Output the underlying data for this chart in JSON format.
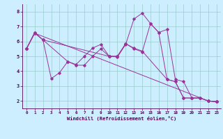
{
  "xlabel": "Windchill (Refroidissement éolien,°C)",
  "bg_color": "#cceeff",
  "line_color": "#993399",
  "grid_color": "#99cccc",
  "xlim": [
    -0.5,
    23.5
  ],
  "ylim": [
    1.5,
    8.5
  ],
  "yticks": [
    2,
    3,
    4,
    5,
    6,
    7,
    8
  ],
  "xticks": [
    0,
    1,
    2,
    3,
    4,
    5,
    6,
    7,
    8,
    9,
    10,
    11,
    12,
    13,
    14,
    15,
    16,
    17,
    18,
    19,
    20,
    21,
    22,
    23
  ],
  "series": [
    {
      "x": [
        0,
        1,
        2,
        10,
        11,
        12,
        13,
        14,
        15,
        16,
        17,
        18,
        19,
        20,
        21,
        22,
        23
      ],
      "y": [
        5.5,
        6.6,
        6.1,
        5.0,
        4.95,
        5.8,
        7.5,
        7.9,
        7.2,
        6.6,
        6.8,
        3.45,
        3.3,
        2.2,
        2.2,
        2.0,
        1.95
      ]
    },
    {
      "x": [
        0,
        1,
        2,
        5,
        6,
        7,
        8,
        9,
        10,
        11,
        12,
        13,
        14,
        17,
        18,
        19,
        20,
        21,
        22,
        23
      ],
      "y": [
        5.5,
        6.6,
        6.1,
        4.65,
        4.45,
        5.0,
        5.55,
        5.8,
        5.0,
        5.0,
        5.85,
        5.55,
        5.35,
        3.45,
        3.3,
        2.2,
        2.2,
        2.2,
        2.0,
        1.95
      ]
    },
    {
      "x": [
        0,
        1,
        2,
        3,
        4,
        5,
        6,
        7,
        8,
        9,
        10,
        11,
        12,
        13,
        14,
        15,
        16,
        17,
        18,
        19,
        20,
        21,
        22,
        23
      ],
      "y": [
        5.5,
        6.55,
        6.1,
        3.5,
        3.9,
        4.65,
        4.4,
        4.4,
        5.0,
        5.5,
        5.0,
        5.0,
        5.85,
        5.5,
        5.3,
        7.2,
        6.6,
        3.45,
        3.3,
        2.2,
        2.2,
        2.2,
        2.0,
        1.95
      ]
    },
    {
      "x": [
        0,
        1,
        22,
        23
      ],
      "y": [
        5.5,
        6.55,
        2.0,
        1.95
      ]
    }
  ]
}
